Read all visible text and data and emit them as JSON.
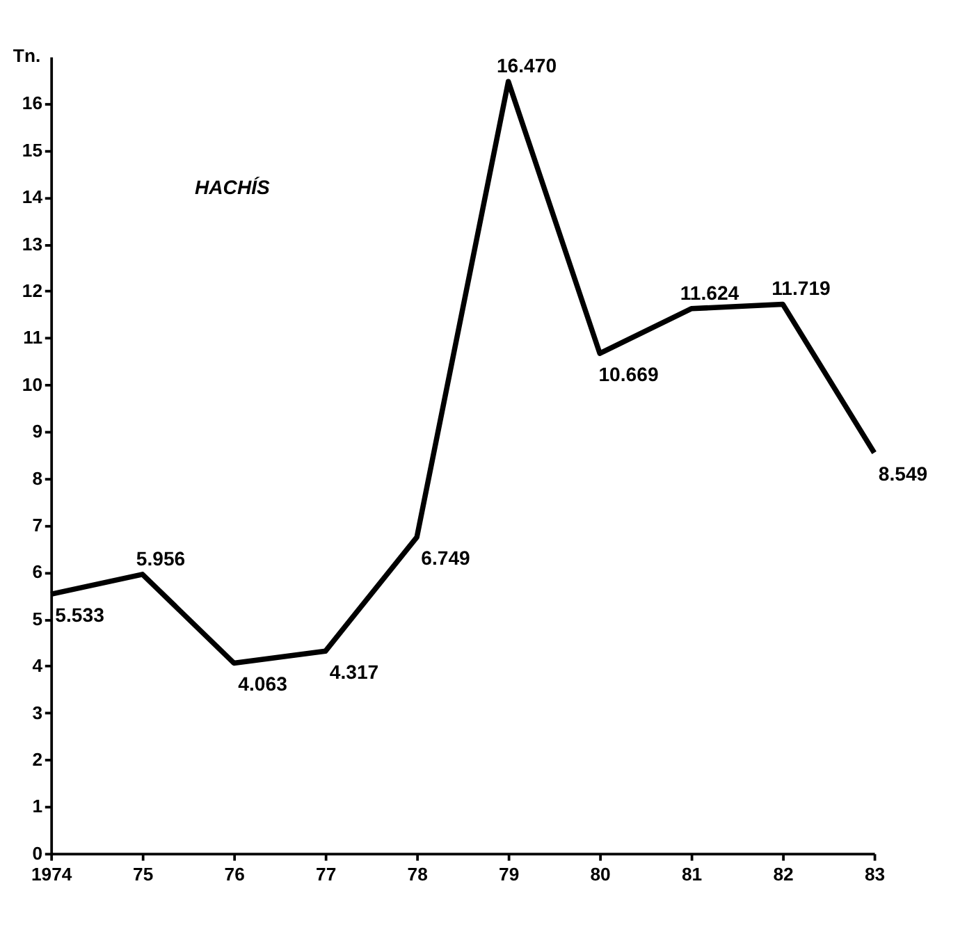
{
  "chart_data": {
    "type": "line",
    "ylabel": "Tn.",
    "annotations": [
      "HACHÍS"
    ],
    "categories": [
      "1974",
      "75",
      "76",
      "77",
      "78",
      "79",
      "80",
      "81",
      "82",
      "83"
    ],
    "series": [
      {
        "color": "#000000",
        "values": [
          5.533,
          5.956,
          4.063,
          4.317,
          6.749,
          16.47,
          10.669,
          11.624,
          11.719,
          8.549
        ]
      }
    ],
    "value_labels": [
      "5.533",
      "5.956",
      "4.063",
      "4.317",
      "6.749",
      "16.470",
      "10.669",
      "11.624",
      "11.719",
      "8.549"
    ],
    "ylim": [
      0,
      17
    ],
    "yticks": [
      0,
      1,
      2,
      3,
      4,
      5,
      6,
      7,
      8,
      9,
      10,
      11,
      12,
      13,
      14,
      15,
      16
    ],
    "grid": false,
    "marker": "none",
    "line_style": "solid"
  }
}
